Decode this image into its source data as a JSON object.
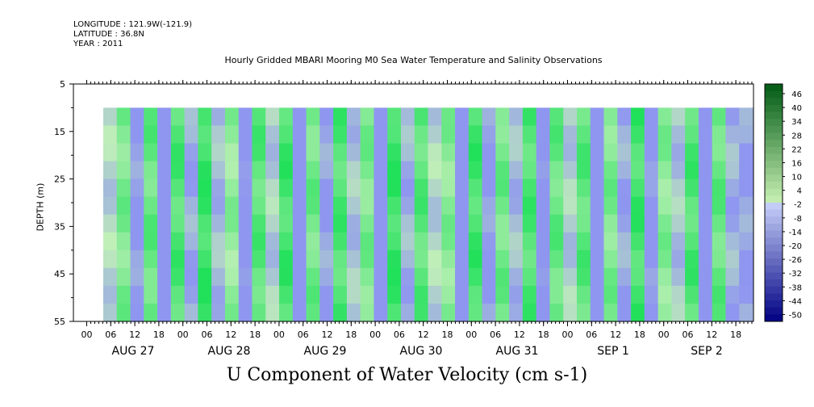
{
  "meta": {
    "longitude": "LONGITUDE : 121.9W(-121.9)",
    "latitude": "LATITUDE : 36.8N",
    "year": "YEAR : 2011"
  },
  "chart_data": {
    "type": "heatmap",
    "title": "Hourly Gridded MBARI Mooring M0 Sea Water Temperature and Salinity Observations",
    "xlabel": "U Component of Water Velocity (cm s-1)",
    "ylabel": "DEPTH (m)",
    "y_ticks": [
      "5",
      "15",
      "25",
      "35",
      "45",
      "55"
    ],
    "ylim": [
      5,
      55
    ],
    "y_inverted": true,
    "data_depth_range": [
      10,
      55
    ],
    "hour_ticks": [
      "00",
      "06",
      "12",
      "18",
      "00",
      "06",
      "12",
      "18",
      "00",
      "06",
      "12",
      "18",
      "00",
      "06",
      "12",
      "18",
      "00",
      "06",
      "12",
      "18",
      "00",
      "06",
      "12",
      "18",
      "00",
      "06",
      "12",
      "18"
    ],
    "day_labels": [
      "AUG 27",
      "AUG 28",
      "AUG 29",
      "AUG 30",
      "AUG 31",
      "SEP  1",
      "SEP  2"
    ],
    "colorbar": {
      "labels": [
        "46",
        "40",
        "34",
        "28",
        "22",
        "16",
        "10",
        "4",
        "-2",
        "-8",
        "-14",
        "-20",
        "-26",
        "-32",
        "-38",
        "-44",
        "-50"
      ],
      "range": [
        -50,
        50
      ]
    },
    "u_velocity_profile_10m_to_55m": [
      -3,
      6,
      -10,
      8,
      -14,
      10,
      -8,
      12,
      -6,
      4,
      -12,
      9,
      -4,
      11,
      -16,
      7,
      -9,
      10,
      -5,
      6,
      -13,
      12,
      -7,
      9,
      -3,
      5,
      -15,
      11,
      -10,
      7,
      -6,
      10,
      -12,
      8,
      -4,
      9,
      -14,
      6,
      -8,
      11,
      -11,
      5,
      -5,
      10,
      -13,
      8,
      -7,
      -9
    ],
    "colors": {
      "positive": "#21e05a",
      "neutral": "#c0f0b8",
      "negative": "#8f96f0"
    }
  }
}
